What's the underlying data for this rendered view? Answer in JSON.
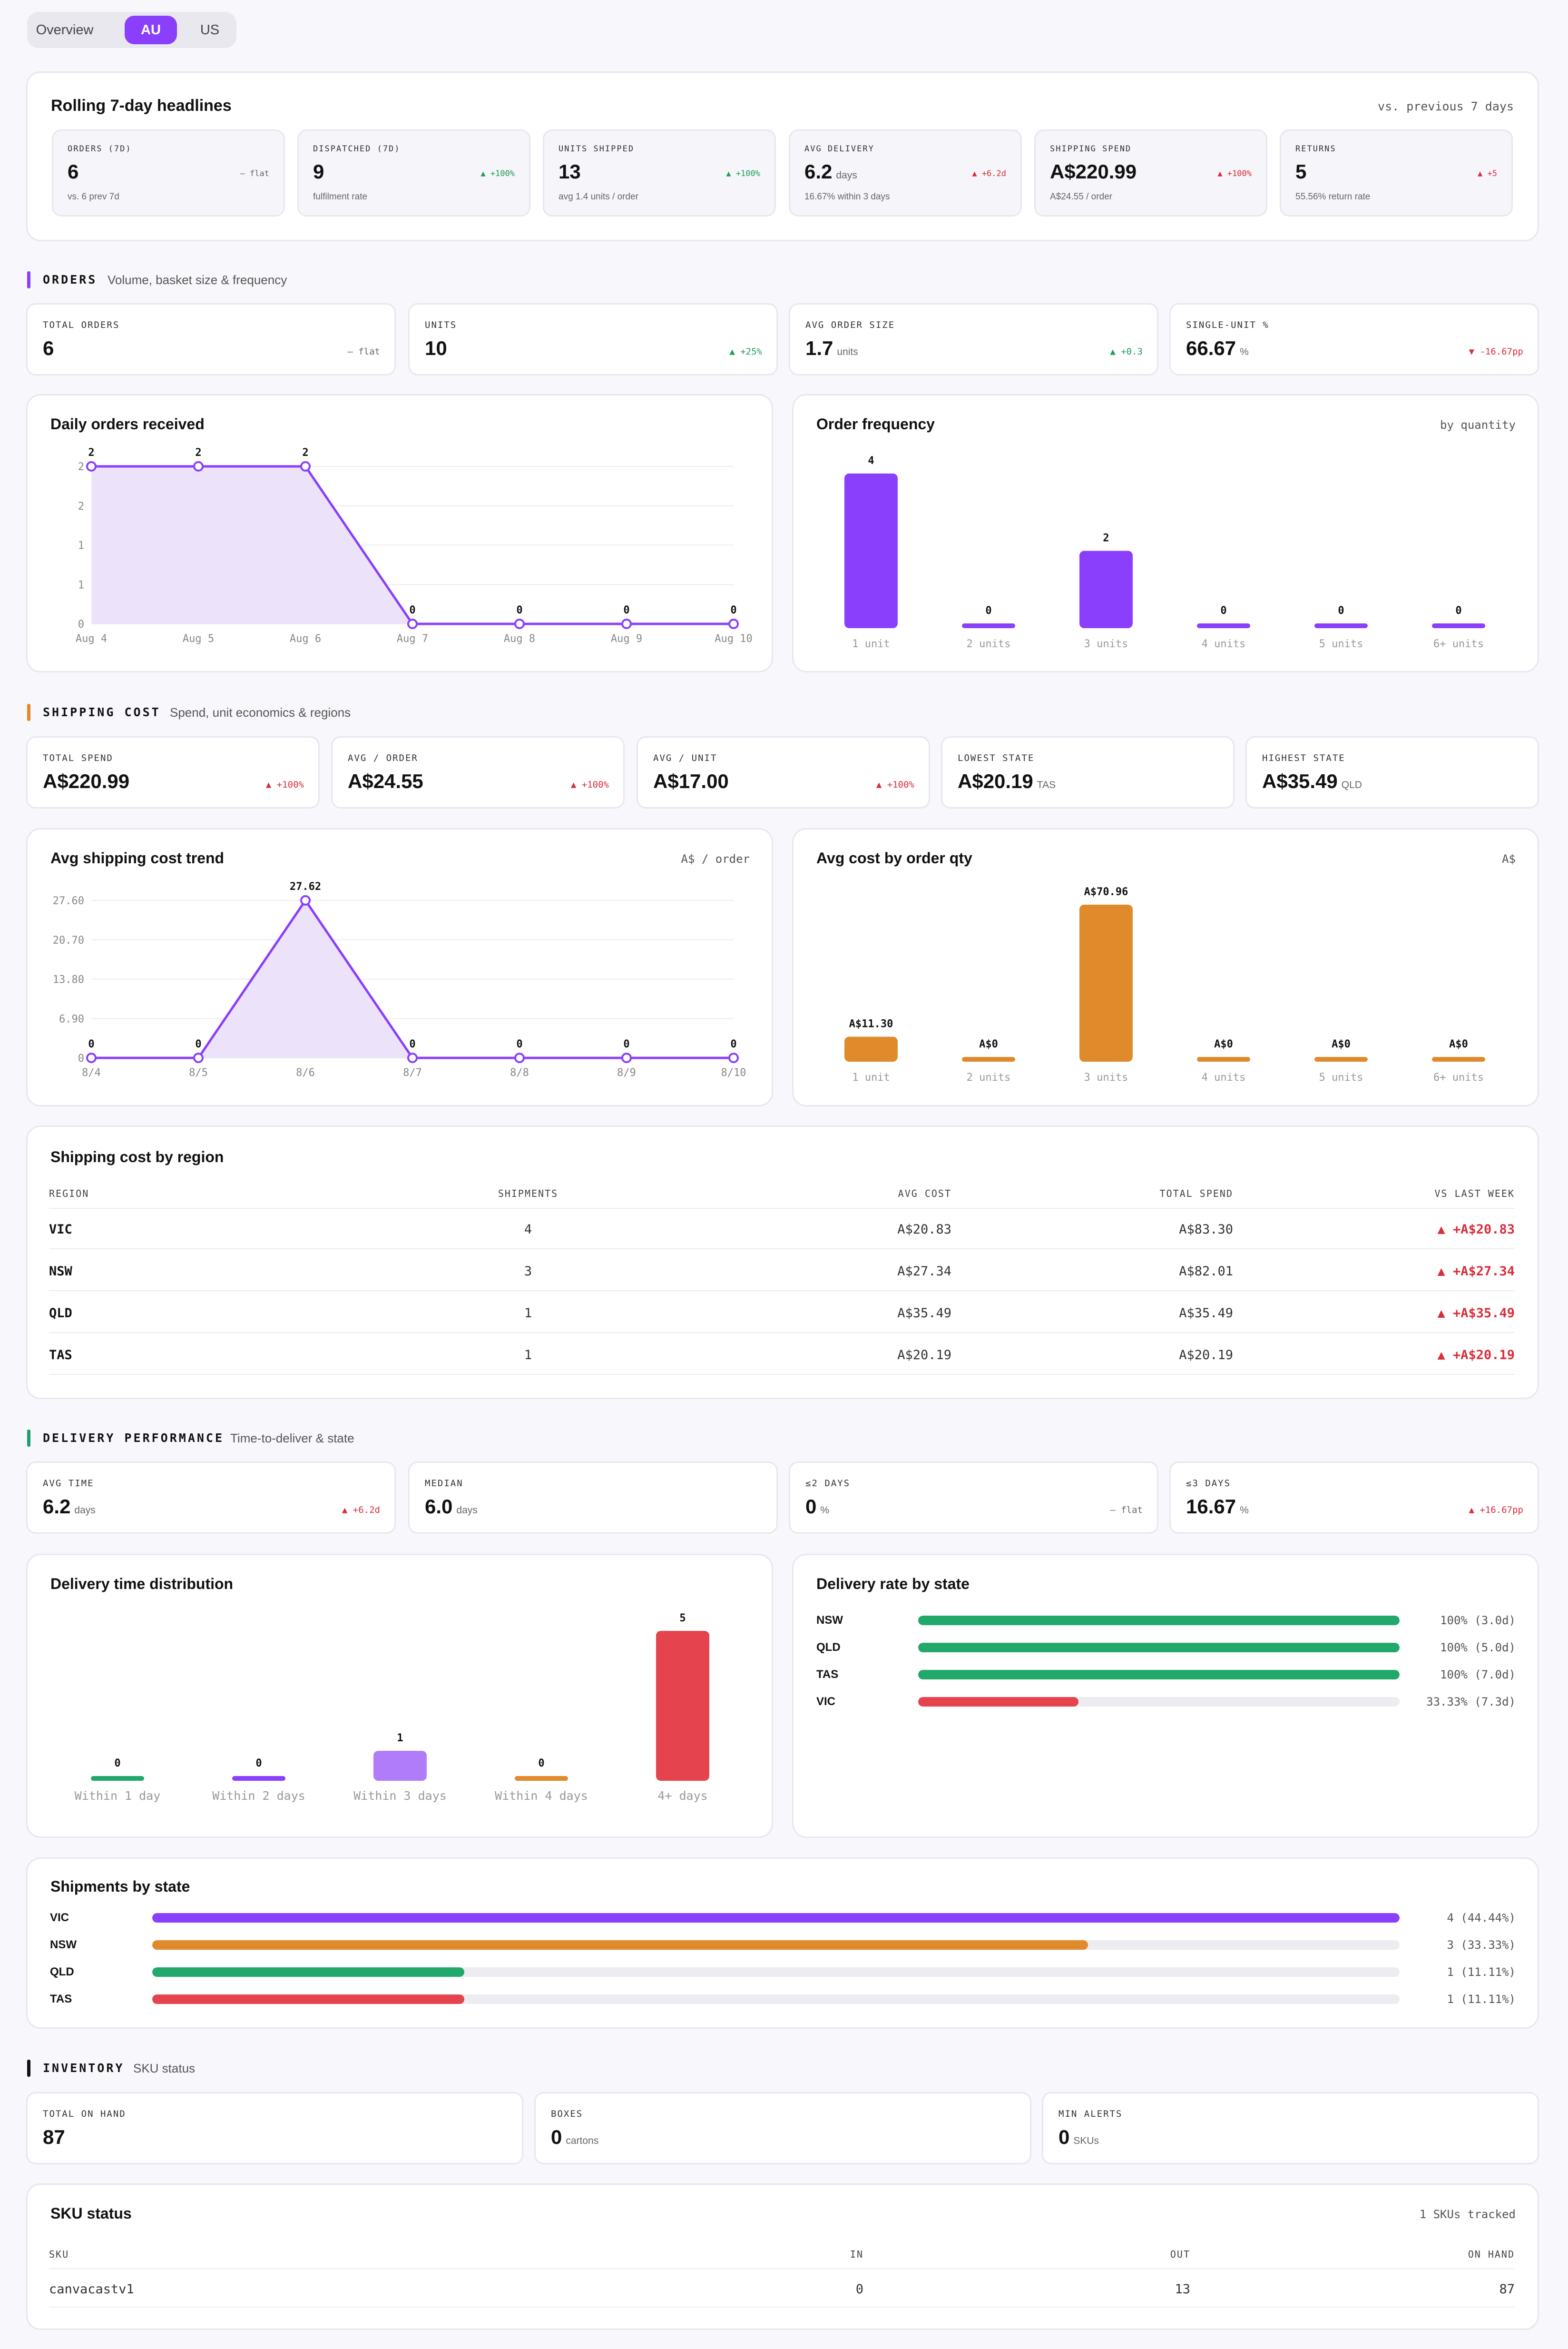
{
  "tabs": [
    "Overview",
    "AU",
    "US"
  ],
  "headlines": {
    "title": "Rolling 7-day headlines",
    "compare": "vs. previous 7 days",
    "items": [
      {
        "label": "ORDERS (7D)",
        "value": "6",
        "unit": "",
        "delta": "— flat",
        "dir": "flat",
        "sub": "vs. 6 prev 7d"
      },
      {
        "label": "DISPATCHED (7D)",
        "value": "9",
        "unit": "",
        "delta": "▲ +100%",
        "dir": "up",
        "sub": "fulfilment rate"
      },
      {
        "label": "UNITS SHIPPED",
        "value": "13",
        "unit": "",
        "delta": "▲ +100%",
        "dir": "up",
        "sub": "avg 1.4 units / order"
      },
      {
        "label": "AVG DELIVERY",
        "value": "6.2",
        "unit": "days",
        "delta": "▲ +6.2d",
        "dir": "down",
        "sub": "16.67% within 3 days"
      },
      {
        "label": "SHIPPING SPEND",
        "value": "A$220.99",
        "unit": "",
        "delta": "▲ +100%",
        "dir": "down",
        "sub": "A$24.55 / order"
      },
      {
        "label": "RETURNS",
        "value": "5",
        "unit": "",
        "delta": "▲ +5",
        "dir": "down",
        "sub": "55.56% return rate"
      }
    ]
  },
  "orders": {
    "title": "ORDERS",
    "subtitle": "Volume, basket size & frequency",
    "color": "#8a3ffc",
    "kpis": [
      {
        "label": "TOTAL ORDERS",
        "value": "6",
        "unit": "",
        "delta": "— flat",
        "dir": "flat"
      },
      {
        "label": "UNITS",
        "value": "10",
        "unit": "",
        "delta": "▲ +25%",
        "dir": "up"
      },
      {
        "label": "AVG ORDER SIZE",
        "value": "1.7",
        "unit": "units",
        "delta": "▲ +0.3",
        "dir": "up"
      },
      {
        "label": "SINGLE-UNIT %",
        "value": "66.67",
        "unit": "%",
        "delta": "▼ -16.67pp",
        "dir": "down"
      }
    ]
  },
  "daily_orders": {
    "title": "Daily orders received"
  },
  "order_frequency": {
    "title": "Order frequency",
    "note": "by quantity"
  },
  "shipping": {
    "title": "SHIPPING COST",
    "subtitle": "Spend, unit economics & regions",
    "color": "#e08a2c",
    "kpis": [
      {
        "label": "TOTAL SPEND",
        "value": "A$220.99",
        "unit": "",
        "delta": "▲ +100%",
        "dir": "down"
      },
      {
        "label": "AVG / ORDER",
        "value": "A$24.55",
        "unit": "",
        "delta": "▲ +100%",
        "dir": "down"
      },
      {
        "label": "AVG / UNIT",
        "value": "A$17.00",
        "unit": "",
        "delta": "▲ +100%",
        "dir": "down"
      },
      {
        "label": "LOWEST STATE",
        "value": "A$20.19",
        "unit": "TAS",
        "delta": "",
        "dir": "flat"
      },
      {
        "label": "HIGHEST STATE",
        "value": "A$35.49",
        "unit": "QLD",
        "delta": "",
        "dir": "flat"
      }
    ]
  },
  "cost_trend": {
    "title": "Avg shipping cost trend",
    "note": "A$ / order"
  },
  "cost_by_qty": {
    "title": "Avg cost by order qty",
    "note": "A$"
  },
  "region_table": {
    "title": "Shipping cost by region",
    "headers": [
      "REGION",
      "SHIPMENTS",
      "AVG COST",
      "TOTAL SPEND",
      "VS LAST WEEK"
    ],
    "rows": [
      [
        "VIC",
        "4",
        "A$20.83",
        "A$83.30",
        "▲ +A$20.83"
      ],
      [
        "NSW",
        "3",
        "A$27.34",
        "A$82.01",
        "▲ +A$27.34"
      ],
      [
        "QLD",
        "1",
        "A$35.49",
        "A$35.49",
        "▲ +A$35.49"
      ],
      [
        "TAS",
        "1",
        "A$20.19",
        "A$20.19",
        "▲ +A$20.19"
      ]
    ]
  },
  "delivery": {
    "title": "DELIVERY PERFORMANCE",
    "subtitle": "Time-to-deliver & state",
    "color": "#1f9d6a",
    "kpis": [
      {
        "label": "AVG TIME",
        "value": "6.2",
        "unit": "days",
        "delta": "▲ +6.2d",
        "dir": "down"
      },
      {
        "label": "MEDIAN",
        "value": "6.0",
        "unit": "days",
        "delta": "",
        "dir": "flat"
      },
      {
        "label": "≤2 DAYS",
        "value": "0",
        "unit": "%",
        "delta": "— flat",
        "dir": "flat"
      },
      {
        "label": "≤3 DAYS",
        "value": "16.67",
        "unit": "%",
        "delta": "▲ +16.67pp",
        "dir": "down"
      }
    ]
  },
  "delivery_dist": {
    "title": "Delivery time distribution"
  },
  "delivery_rate": {
    "title": "Delivery rate by state",
    "rows": [
      {
        "state": "NSW",
        "pct": 100,
        "text": "100% (3.0d)",
        "color": "#22a86b"
      },
      {
        "state": "QLD",
        "pct": 100,
        "text": "100% (5.0d)",
        "color": "#22a86b"
      },
      {
        "state": "TAS",
        "pct": 100,
        "text": "100% (7.0d)",
        "color": "#22a86b"
      },
      {
        "state": "VIC",
        "pct": 33.33,
        "text": "33.33% (7.3d)",
        "color": "#e5444e"
      }
    ]
  },
  "shipments_state": {
    "title": "Shipments by state",
    "rows": [
      {
        "state": "VIC",
        "pct": 100,
        "text": "4 (44.44%)",
        "color": "#8a3ffc"
      },
      {
        "state": "NSW",
        "pct": 75,
        "text": "3 (33.33%)",
        "color": "#e08a2c"
      },
      {
        "state": "QLD",
        "pct": 25,
        "text": "1 (11.11%)",
        "color": "#22a86b"
      },
      {
        "state": "TAS",
        "pct": 25,
        "text": "1 (11.11%)",
        "color": "#e5444e"
      }
    ]
  },
  "inventory": {
    "title": "INVENTORY",
    "subtitle": "SKU status",
    "color": "#111111",
    "kpis": [
      {
        "label": "TOTAL ON HAND",
        "value": "87",
        "unit": ""
      },
      {
        "label": "BOXES",
        "value": "0",
        "unit": "cartons"
      },
      {
        "label": "MIN ALERTS",
        "value": "0",
        "unit": "SKUs"
      }
    ]
  },
  "sku_table": {
    "title": "SKU status",
    "note": "1 SKUs tracked",
    "headers": [
      "SKU",
      "IN",
      "OUT",
      "ON HAND"
    ],
    "rows": [
      [
        "canvacastv1",
        "0",
        "13",
        "87"
      ]
    ]
  },
  "chart_data": [
    {
      "type": "area",
      "title": "Daily orders received",
      "categories": [
        "Aug 4",
        "Aug 5",
        "Aug 6",
        "Aug 7",
        "Aug 8",
        "Aug 9",
        "Aug 10"
      ],
      "values": [
        2,
        2,
        2,
        0,
        0,
        0,
        0
      ],
      "yticks": [
        "0",
        "1",
        "1",
        "2",
        "2"
      ],
      "ylim": [
        0,
        2
      ],
      "color": "#8a3ffc"
    },
    {
      "type": "bar",
      "title": "Order frequency",
      "categories": [
        "1 unit",
        "2 units",
        "3 units",
        "4 units",
        "5 units",
        "6+ units"
      ],
      "values": [
        4,
        0,
        2,
        0,
        0,
        0
      ],
      "labels": [
        "4",
        "0",
        "2",
        "0",
        "0",
        "0"
      ],
      "color": "#8a3ffc"
    },
    {
      "type": "area",
      "title": "Avg shipping cost trend",
      "categories": [
        "8/4",
        "8/5",
        "8/6",
        "8/7",
        "8/8",
        "8/9",
        "8/10"
      ],
      "values": [
        0,
        0,
        27.62,
        0,
        0,
        0,
        0
      ],
      "yticks": [
        "0",
        "6.90",
        "13.80",
        "20.70",
        "27.60"
      ],
      "ylim": [
        0,
        27.62
      ],
      "color": "#8a3ffc"
    },
    {
      "type": "bar",
      "title": "Avg cost by order qty",
      "categories": [
        "1 unit",
        "2 units",
        "3 units",
        "4 units",
        "5 units",
        "6+ units"
      ],
      "values": [
        11.3,
        0,
        70.96,
        0,
        0,
        0
      ],
      "labels": [
        "A$11.30",
        "A$0",
        "A$70.96",
        "A$0",
        "A$0",
        "A$0"
      ],
      "color": "#e08a2c"
    },
    {
      "type": "bar",
      "title": "Delivery time distribution",
      "categories": [
        "Within 1 day",
        "Within 2 days",
        "Within 3 days",
        "Within 4 days",
        "4+ days"
      ],
      "values": [
        0,
        0,
        1,
        0,
        5
      ],
      "labels": [
        "0",
        "0",
        "1",
        "0",
        "5"
      ],
      "colors": [
        "#22a86b",
        "#8a3ffc",
        "#b07cfa",
        "#e08a2c",
        "#e5444e"
      ]
    }
  ]
}
